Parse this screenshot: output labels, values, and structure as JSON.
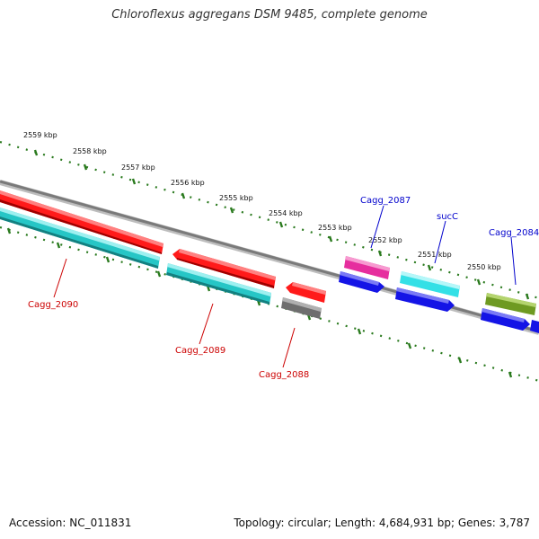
{
  "title": "Chloroflexus aggregans DSM 9485, complete genome",
  "accession": "Accession: NC_011831",
  "topology": "Topology: circular; Length: 4,684,931 bp; Genes: 3,787",
  "colors": {
    "backbone": "#888888",
    "ticks": "#2a7a1e",
    "label_red": "#cc0000",
    "label_blue": "#0000cc",
    "gene_red": "#ff1a1a",
    "gene_cyan": "#26c6c6",
    "gene_gray": "#6e6e6e",
    "gene_magenta": "#e62e9e",
    "gene_blue": "#1414e6",
    "gene_lightcyan": "#33e0e6",
    "gene_olive": "#6e9a22"
  },
  "kbp_labels": [
    "2559 kbp",
    "2558 kbp",
    "2557 kbp",
    "2556 kbp",
    "2555 kbp",
    "2554 kbp",
    "2553 kbp",
    "2552 kbp",
    "2551 kbp",
    "2550 kbp"
  ],
  "gene_labels": [
    {
      "id": "cagg-2090",
      "text": "Cagg_2090",
      "color": "red"
    },
    {
      "id": "cagg-2089",
      "text": "Cagg_2089",
      "color": "red"
    },
    {
      "id": "cagg-2088",
      "text": "Cagg_2088",
      "color": "red"
    },
    {
      "id": "cagg-2087",
      "text": "Cagg_2087",
      "color": "blue"
    },
    {
      "id": "succ",
      "text": "sucC",
      "color": "blue"
    },
    {
      "id": "cagg-2084",
      "text": "Cagg_2084",
      "color": "blue"
    }
  ]
}
